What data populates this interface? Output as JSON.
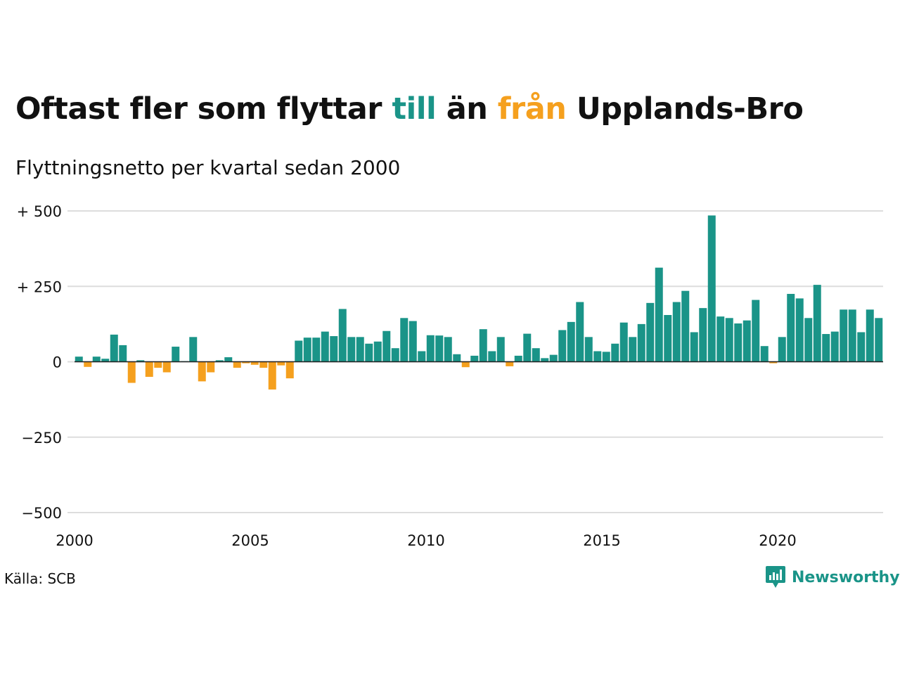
{
  "header": {
    "title_parts": [
      "Oftast fler som flyttar ",
      "till",
      " än ",
      "från",
      " Upplands-Bro"
    ],
    "subtitle": "Flyttningsnetto per kvartal sedan 2000"
  },
  "footer": {
    "source": "Källa: SCB",
    "logo_text": "Newsworthy"
  },
  "colors": {
    "positive": "#1a9488",
    "negative": "#f5a01e",
    "grid": "#dddddd",
    "baseline": "#222222",
    "text": "#111111"
  },
  "chart_data": {
    "type": "bar",
    "title": "Oftast fler som flyttar till än från Upplands-Bro",
    "subtitle": "Flyttningsnetto per kvartal sedan 2000",
    "x_start": "2000 Q1",
    "frequency": "quarterly",
    "ylim": [
      -500,
      500
    ],
    "y_ticks": [
      {
        "value": 500,
        "label": "+ 500"
      },
      {
        "value": 250,
        "label": "+ 250"
      },
      {
        "value": 0,
        "label": "0"
      },
      {
        "value": -250,
        "label": "−250"
      },
      {
        "value": -500,
        "label": "−500"
      }
    ],
    "x_ticks": [
      "2000",
      "2005",
      "2010",
      "2015",
      "2020"
    ],
    "grid": true,
    "values": [
      17,
      -17,
      17,
      10,
      90,
      55,
      -70,
      5,
      -50,
      -20,
      -35,
      50,
      2,
      82,
      -65,
      -35,
      5,
      15,
      -20,
      -5,
      -10,
      -20,
      -92,
      -12,
      -55,
      70,
      80,
      80,
      100,
      85,
      175,
      82,
      82,
      60,
      67,
      102,
      45,
      145,
      135,
      35,
      88,
      87,
      82,
      25,
      -18,
      20,
      108,
      35,
      82,
      -15,
      20,
      93,
      45,
      12,
      23,
      105,
      132,
      198,
      82,
      35,
      33,
      60,
      130,
      82,
      125,
      195,
      312,
      155,
      198,
      235,
      98,
      178,
      485,
      150,
      145,
      127,
      137,
      205,
      52,
      -5,
      82,
      225,
      210,
      145,
      255,
      92,
      100,
      173,
      173,
      98,
      173,
      145
    ]
  }
}
